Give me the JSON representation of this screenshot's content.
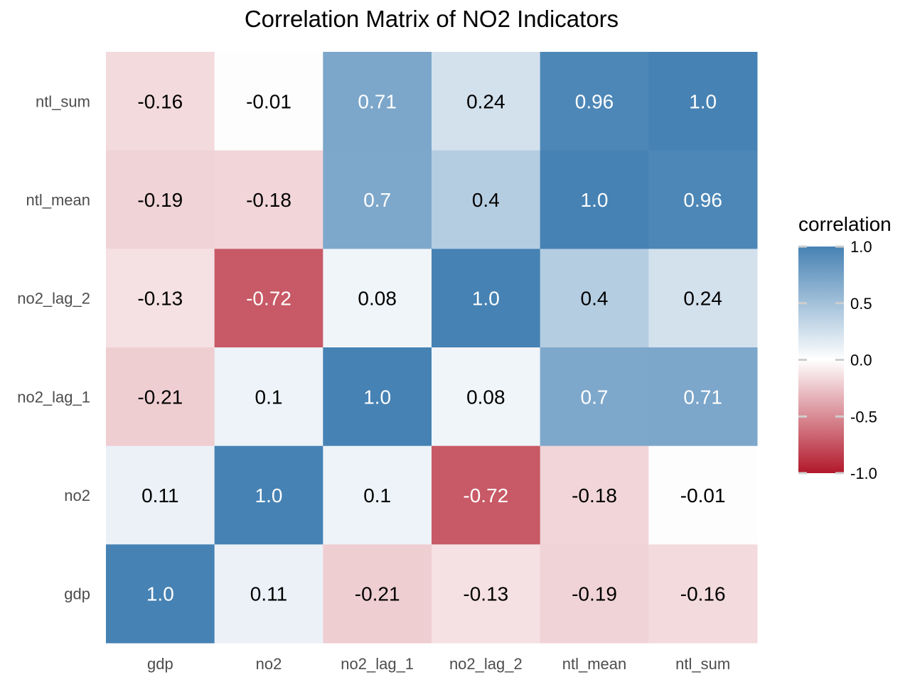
{
  "chart_data": {
    "type": "heatmap",
    "title": "Correlation Matrix of NO2 Indicators",
    "xlabel": "",
    "ylabel": "",
    "x_categories": [
      "gdp",
      "no2",
      "no2_lag_1",
      "no2_lag_2",
      "ntl_mean",
      "ntl_sum"
    ],
    "y_categories": [
      "ntl_sum",
      "ntl_mean",
      "no2_lag_2",
      "no2_lag_1",
      "no2",
      "gdp"
    ],
    "values": [
      [
        -0.16,
        -0.01,
        0.71,
        0.24,
        0.96,
        1.0
      ],
      [
        -0.19,
        -0.18,
        0.7,
        0.4,
        1.0,
        0.96
      ],
      [
        -0.13,
        -0.72,
        0.08,
        1.0,
        0.4,
        0.24
      ],
      [
        -0.21,
        0.1,
        1.0,
        0.08,
        0.7,
        0.71
      ],
      [
        0.11,
        1.0,
        0.1,
        -0.72,
        -0.18,
        -0.01
      ],
      [
        1.0,
        0.11,
        -0.21,
        -0.13,
        -0.19,
        -0.16
      ]
    ],
    "labels": [
      [
        "-0.16",
        "-0.01",
        "0.71",
        "0.24",
        "0.96",
        "1.0"
      ],
      [
        "-0.19",
        "-0.18",
        "0.7",
        "0.4",
        "1.0",
        "0.96"
      ],
      [
        "-0.13",
        "-0.72",
        "0.08",
        "1.0",
        "0.4",
        "0.24"
      ],
      [
        "-0.21",
        "0.1",
        "1.0",
        "0.08",
        "0.7",
        "0.71"
      ],
      [
        "0.11",
        "1.0",
        "0.1",
        "-0.72",
        "-0.18",
        "-0.01"
      ],
      [
        "1.0",
        "0.11",
        "-0.21",
        "-0.13",
        "-0.19",
        "-0.16"
      ]
    ],
    "legend": {
      "title": "correlation",
      "range": [
        -1.0,
        1.0
      ],
      "ticks": [
        1.0,
        0.5,
        0.0,
        -0.5,
        -1.0
      ],
      "tick_labels": [
        "1.0",
        "0.5",
        "0.0",
        "-0.5",
        "-1.0"
      ],
      "placement": "right"
    },
    "colors": {
      "low": "#b2182b",
      "mid": "#ffffff",
      "high": "#4682b4",
      "text_dark": "#000000",
      "text_light": "#ffffff",
      "axis_text": "#4d4d4d"
    }
  }
}
